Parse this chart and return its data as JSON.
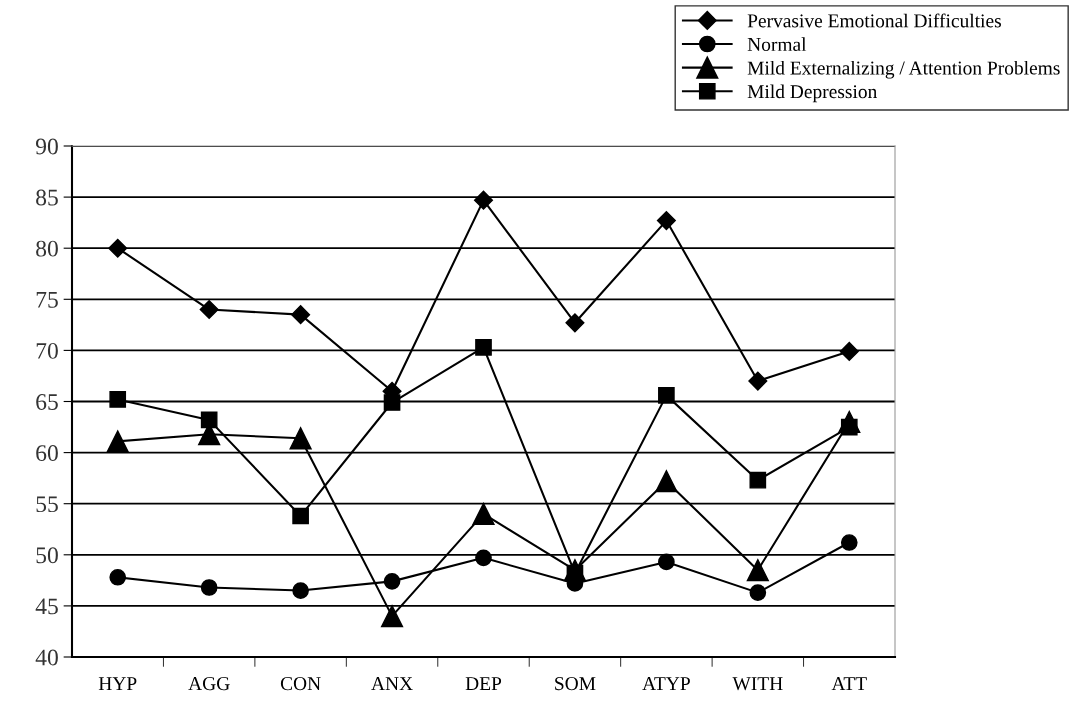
{
  "chart_data": {
    "type": "line",
    "categories": [
      "HYP",
      "AGG",
      "CON",
      "ANX",
      "DEP",
      "SOM",
      "ATYP",
      "WITH",
      "ATT"
    ],
    "series": [
      {
        "name": "Pervasive Emotional Difficulties",
        "color": "#000000",
        "marker": "diamond",
        "values": [
          80,
          74,
          73.5,
          66,
          84.7,
          72.7,
          82.7,
          67,
          69.9
        ]
      },
      {
        "name": "Normal",
        "color": "#000000",
        "marker": "circle",
        "values": [
          47.8,
          46.8,
          46.5,
          47.4,
          49.7,
          47.2,
          49.3,
          46.3,
          51.2
        ]
      },
      {
        "name": "Mild Externalizing / Attention Problems",
        "color": "#000000",
        "marker": "triangle",
        "values": [
          61.1,
          61.8,
          61.4,
          44,
          54,
          48.5,
          57.2,
          48.5,
          63
        ]
      },
      {
        "name": "Mild Depression",
        "color": "#000000",
        "marker": "square",
        "values": [
          65.2,
          63.2,
          53.8,
          64.9,
          70.3,
          48.2,
          65.6,
          57.3,
          62.5
        ]
      }
    ],
    "ylim": [
      40,
      90
    ],
    "yticks": [
      40,
      45,
      50,
      55,
      60,
      65,
      70,
      75,
      80,
      85,
      90
    ],
    "grid": "y",
    "legend": "top right",
    "line_style": "solid"
  }
}
